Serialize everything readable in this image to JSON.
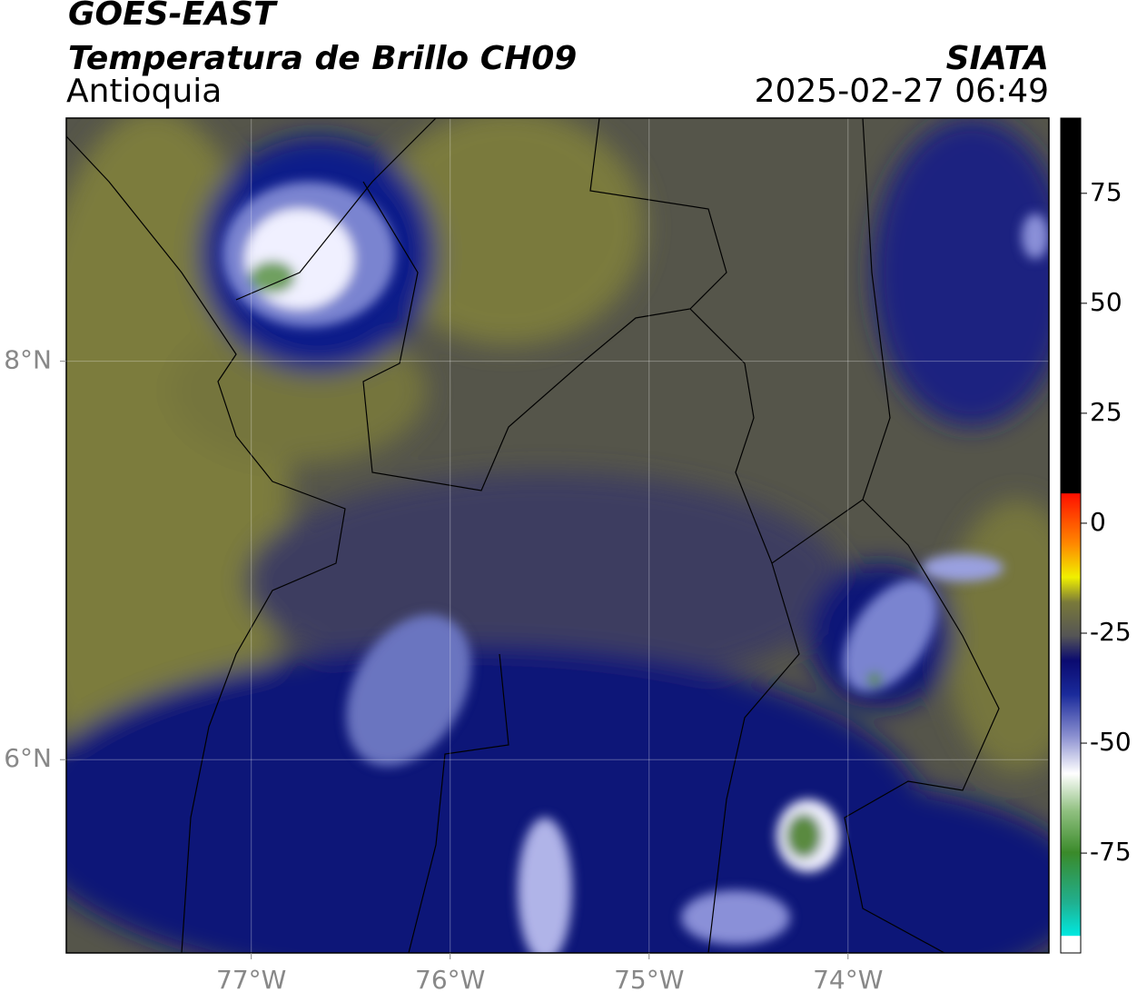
{
  "header": {
    "title": "GOES-EAST",
    "subtitle": "Temperatura de Brillo CH09",
    "region": "Antioquia",
    "source": "SIATA",
    "timestamp": "2025-02-27 06:49"
  },
  "map": {
    "xlim": [
      -77.93,
      -72.99
    ],
    "ylim": [
      5.03,
      9.22
    ],
    "xticks": [
      {
        "value": -77,
        "label": "77°W"
      },
      {
        "value": -76,
        "label": "76°W"
      },
      {
        "value": -75,
        "label": "75°W"
      },
      {
        "value": -74,
        "label": "74°W"
      }
    ],
    "yticks": [
      {
        "value": 6,
        "label": "6°N"
      },
      {
        "value": 8,
        "label": "8°N"
      }
    ],
    "grid": true
  },
  "colorbar": {
    "lim": [
      -97.7,
      92.1
    ],
    "ticks": [
      75,
      50,
      25,
      0,
      -25,
      -50,
      -75
    ]
  }
}
